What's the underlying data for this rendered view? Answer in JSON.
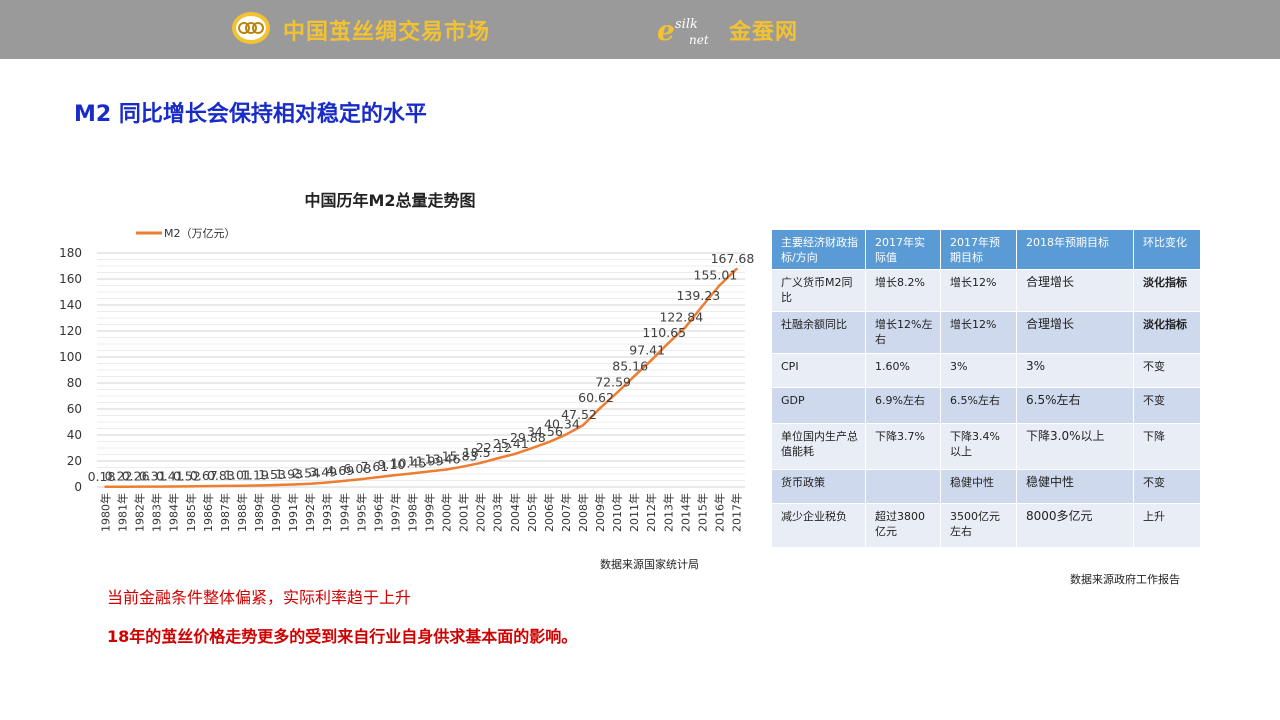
{
  "header": {
    "brand_left": "中国茧丝绸交易市场",
    "brand_right": "金蚕网",
    "logo_right_text": "silk",
    "logo_right_sub": "net",
    "colors": {
      "bar": "#9a9a9a",
      "brand": "#f2c232"
    }
  },
  "page_title": "M2 同比增长会保持相对稳定的水平",
  "chart_data": {
    "type": "line",
    "title": "中国历年M2总量走势图",
    "legend": "M2（万亿元）",
    "legend_position": "top-left",
    "grid": true,
    "ylim": [
      0,
      180
    ],
    "yticks": [
      0,
      20,
      40,
      60,
      80,
      100,
      120,
      140,
      160,
      180
    ],
    "categories": [
      "1980年",
      "1981年",
      "1982年",
      "1983年",
      "1984年",
      "1985年",
      "1986年",
      "1987年",
      "1988年",
      "1989年",
      "1990年",
      "1991年",
      "1992年",
      "1993年",
      "1994年",
      "1995年",
      "1996年",
      "1997年",
      "1998年",
      "1999年",
      "2000年",
      "2001年",
      "2002年",
      "2003年",
      "2004年",
      "2005年",
      "2006年",
      "2007年",
      "2008年",
      "2009年",
      "2010年",
      "2011年",
      "2012年",
      "2013年",
      "2014年",
      "2015年",
      "2016年",
      "2017年"
    ],
    "series": [
      {
        "name": "M2（万亿元）",
        "color": "#ed7d31",
        "values": [
          0.18,
          0.22,
          0.26,
          0.31,
          0.41,
          0.52,
          0.67,
          0.83,
          1.01,
          1.19,
          1.53,
          1.93,
          2.54,
          3.49,
          4.69,
          6.08,
          7.61,
          9.1,
          10.45,
          11.99,
          13.46,
          15.83,
          18.5,
          22.12,
          25.41,
          29.88,
          34.56,
          40.34,
          47.52,
          60.62,
          72.59,
          85.16,
          97.41,
          110.65,
          122.84,
          139.23,
          155.01,
          167.68
        ],
        "labels": [
          "0.18",
          "0.22",
          "0.26",
          "0.31",
          "0.41",
          "0.52",
          "0.67",
          "0.83",
          "1.01",
          "1.19",
          "1.53",
          "1.93",
          "2.54",
          "3.49",
          "4.69",
          "6.08",
          "7.61",
          "9.10",
          "10.45",
          "11.99",
          "13.46",
          "15.83",
          "18.5",
          "22.12",
          "25.41",
          "29.88",
          "34.56",
          "40.34",
          "47.52",
          "60.62",
          "72.59",
          "85.16",
          "97.41",
          "110.65",
          "122.84",
          "139.23",
          "155.01",
          "167.68"
        ]
      }
    ],
    "source": "数据来源国家统计局"
  },
  "table": {
    "headers": [
      "主要经济财政指标/方向",
      "2017年实际值",
      "2017年预期目标",
      "2018年预期目标",
      "环比变化"
    ],
    "rows": [
      [
        "广义货币M2同比",
        "增长8.2%",
        "增长12%",
        "合理增长",
        "淡化指标"
      ],
      [
        "社融余额同比",
        "增长12%左右",
        "增长12%",
        "合理增长",
        "淡化指标"
      ],
      [
        "CPI",
        "1.60%",
        "3%",
        "3%",
        "不变"
      ],
      [
        "GDP",
        "6.9%左右",
        "6.5%左右",
        "6.5%左右",
        "不变"
      ],
      [
        "单位国内生产总值能耗",
        "下降3.7%",
        "下降3.4%以上",
        "下降3.0%以上",
        "下降"
      ],
      [
        "货币政策",
        "",
        "稳健中性",
        "稳健中性",
        "不变"
      ],
      [
        "减少企业税负",
        "超过3800亿元",
        "3500亿元左右",
        "8000多亿元",
        "上升"
      ]
    ],
    "source": "数据来源政府工作报告",
    "colors": {
      "header_bg": "#5b9bd5",
      "row_dark": "#ced9ed",
      "row_light": "#e8edf6"
    }
  },
  "notes": [
    "当前金融条件整体偏紧，实际利率趋于上升",
    "18年的茧丝价格走势更多的受到来自行业自身供求基本面的影响。"
  ]
}
